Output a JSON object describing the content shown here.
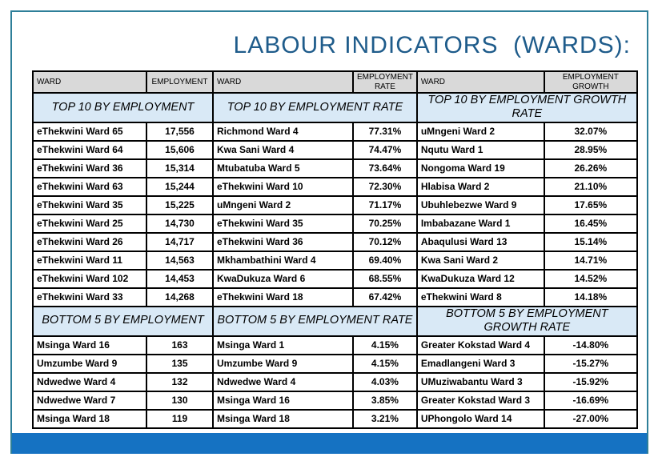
{
  "title": "LABOUR INDICATORS  (WARDS):",
  "colors": {
    "title_text": "#1F5C8B",
    "slide_border": "#2E7F99",
    "bottom_bar": "#1572C2",
    "column_header_bg": "#D9D9D9",
    "section_row_bg": "#D9E9F6",
    "table_border": "#000000"
  },
  "table": {
    "groups": [
      {
        "ward_header": "WARD",
        "value_header": "EMPLOYMENT",
        "top_title": "TOP 10 BY EMPLOYMENT",
        "bottom_title": "BOTTOM 5 BY EMPLOYMENT",
        "top_rows": [
          {
            "ward": "eThekwini Ward 65",
            "value": "17,556"
          },
          {
            "ward": "eThekwini Ward 64",
            "value": "15,606"
          },
          {
            "ward": "eThekwini Ward 36",
            "value": "15,314"
          },
          {
            "ward": "eThekwini Ward 63",
            "value": "15,244"
          },
          {
            "ward": "eThekwini Ward 35",
            "value": "15,225"
          },
          {
            "ward": "eThekwini Ward 25",
            "value": "14,730"
          },
          {
            "ward": "eThekwini Ward 26",
            "value": "14,717"
          },
          {
            "ward": "eThekwini Ward 11",
            "value": "14,563"
          },
          {
            "ward": "eThekwini Ward 102",
            "value": "14,453"
          },
          {
            "ward": "eThekwini Ward 33",
            "value": "14,268"
          }
        ],
        "bottom_rows": [
          {
            "ward": "Msinga Ward 16",
            "value": "163"
          },
          {
            "ward": "Umzumbe Ward 9",
            "value": "135"
          },
          {
            "ward": "Ndwedwe Ward 4",
            "value": "132"
          },
          {
            "ward": "Ndwedwe Ward 7",
            "value": "130"
          },
          {
            "ward": "Msinga Ward 18",
            "value": "119"
          }
        ]
      },
      {
        "ward_header": "WARD",
        "value_header": "EMPLOYMENT RATE",
        "top_title": "TOP 10 BY EMPLOYMENT RATE",
        "bottom_title": "BOTTOM 5 BY EMPLOYMENT RATE",
        "top_rows": [
          {
            "ward": "Richmond Ward 4",
            "value": "77.31%"
          },
          {
            "ward": "Kwa Sani Ward 4",
            "value": "74.47%"
          },
          {
            "ward": "Mtubatuba Ward 5",
            "value": "73.64%"
          },
          {
            "ward": "eThekwini Ward 10",
            "value": "72.30%"
          },
          {
            "ward": "uMngeni Ward 2",
            "value": "71.17%"
          },
          {
            "ward": "eThekwini Ward 35",
            "value": "70.25%"
          },
          {
            "ward": "eThekwini Ward 36",
            "value": "70.12%"
          },
          {
            "ward": "Mkhambathini Ward 4",
            "value": "69.40%"
          },
          {
            "ward": "KwaDukuza Ward 6",
            "value": "68.55%"
          },
          {
            "ward": "eThekwini Ward 18",
            "value": "67.42%"
          }
        ],
        "bottom_rows": [
          {
            "ward": "Msinga Ward 1",
            "value": "4.15%"
          },
          {
            "ward": "Umzumbe Ward 9",
            "value": "4.15%"
          },
          {
            "ward": "Ndwedwe Ward 4",
            "value": "4.03%"
          },
          {
            "ward": "Msinga Ward 16",
            "value": "3.85%"
          },
          {
            "ward": "Msinga Ward 18",
            "value": "3.21%"
          }
        ]
      },
      {
        "ward_header": "WARD",
        "value_header": "EMPLOYMENT GROWTH",
        "top_title": "TOP 10 BY EMPLOYMENT GROWTH RATE",
        "bottom_title": "BOTTOM 5 BY EMPLOYMENT GROWTH RATE",
        "top_rows": [
          {
            "ward": "uMngeni Ward 2",
            "value": "32.07%"
          },
          {
            "ward": "Nqutu Ward 1",
            "value": "28.95%"
          },
          {
            "ward": "Nongoma Ward 19",
            "value": "26.26%"
          },
          {
            "ward": "Hlabisa Ward 2",
            "value": "21.10%"
          },
          {
            "ward": "Ubuhlebezwe Ward 9",
            "value": "17.65%"
          },
          {
            "ward": "Imbabazane Ward 1",
            "value": "16.45%"
          },
          {
            "ward": "Abaqulusi Ward 13",
            "value": "15.14%"
          },
          {
            "ward": "Kwa Sani Ward 2",
            "value": "14.71%"
          },
          {
            "ward": "KwaDukuza Ward 12",
            "value": "14.52%"
          },
          {
            "ward": "eThekwini Ward 8",
            "value": "14.18%"
          }
        ],
        "bottom_rows": [
          {
            "ward": "Greater Kokstad Ward 4",
            "value": "-14.80%"
          },
          {
            "ward": "Emadlangeni Ward 3",
            "value": "-15.27%"
          },
          {
            "ward": "UMuziwabantu Ward 3",
            "value": "-15.92%"
          },
          {
            "ward": "Greater Kokstad Ward 3",
            "value": "-16.69%"
          },
          {
            "ward": "UPhongolo Ward 14",
            "value": "-27.00%"
          }
        ]
      }
    ]
  }
}
